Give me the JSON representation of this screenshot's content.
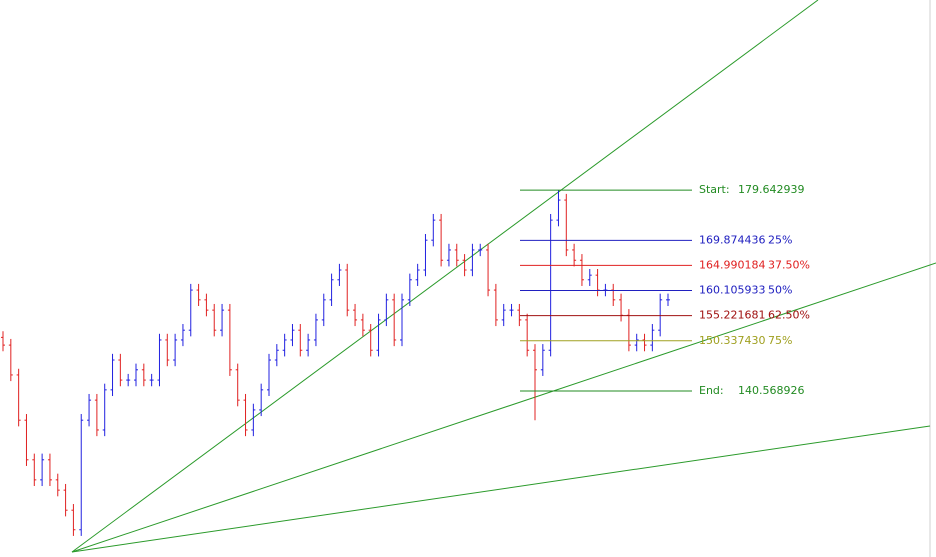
{
  "chart_data": {
    "type": "ohlc",
    "ylim": [
      108.3,
      216.6
    ],
    "up_color": "#2020e0",
    "down_color": "#e02020",
    "open": [
      151.0,
      149.5,
      143.7,
      134.9,
      127.2,
      123.3,
      127.2,
      123.3,
      121.3,
      117.4,
      113.6,
      134.9,
      138.8,
      133.0,
      140.8,
      146.6,
      142.7,
      142.7,
      144.7,
      142.7,
      142.7,
      150.5,
      146.6,
      150.5,
      152.4,
      160.2,
      158.3,
      156.3,
      152.4,
      156.3,
      144.7,
      138.8,
      133.0,
      136.9,
      140.8,
      146.6,
      148.5,
      150.5,
      152.4,
      148.5,
      150.5,
      154.4,
      158.3,
      162.2,
      164.1,
      156.3,
      154.4,
      152.4,
      148.5,
      154.4,
      158.3,
      150.5,
      158.3,
      162.2,
      164.1,
      169.9,
      173.8,
      166.0,
      168.0,
      166.0,
      164.1,
      168.0,
      168.0,
      160.2,
      154.4,
      156.3,
      156.3,
      154.4,
      148.5,
      144.7,
      148.5,
      173.8,
      177.7,
      168.0,
      166.0,
      162.2,
      163.1,
      160.2,
      160.2,
      158.3,
      155.3,
      149.5,
      150.5,
      149.5,
      152.4,
      158.3
    ],
    "high": [
      152.2,
      150.7,
      144.9,
      136.1,
      128.4,
      128.4,
      128.4,
      124.5,
      122.5,
      118.6,
      136.1,
      140.0,
      140.0,
      142.0,
      147.8,
      147.8,
      143.9,
      145.9,
      145.9,
      143.9,
      151.7,
      151.7,
      151.7,
      153.6,
      161.4,
      161.4,
      159.5,
      157.5,
      157.5,
      157.5,
      145.9,
      140.0,
      138.1,
      142.0,
      147.8,
      149.7,
      151.7,
      153.6,
      153.6,
      151.7,
      155.6,
      159.5,
      163.4,
      165.3,
      165.3,
      157.5,
      155.6,
      153.6,
      155.6,
      159.5,
      159.5,
      159.5,
      163.4,
      165.3,
      171.1,
      175.0,
      175.0,
      169.2,
      169.2,
      167.2,
      169.2,
      169.2,
      169.2,
      161.4,
      157.5,
      157.5,
      157.5,
      155.6,
      149.7,
      149.7,
      175.0,
      179.6,
      178.9,
      169.2,
      167.2,
      164.3,
      164.3,
      161.4,
      161.4,
      159.5,
      156.5,
      151.7,
      151.7,
      153.6,
      159.5,
      159.5
    ],
    "low": [
      148.3,
      142.5,
      133.7,
      126.0,
      122.1,
      122.1,
      122.1,
      120.1,
      116.2,
      112.4,
      112.4,
      133.7,
      131.8,
      131.8,
      139.6,
      141.5,
      141.5,
      141.5,
      141.5,
      141.5,
      141.5,
      145.4,
      145.4,
      149.3,
      151.2,
      157.1,
      155.1,
      151.2,
      151.2,
      143.5,
      137.6,
      131.8,
      131.8,
      135.7,
      139.6,
      145.4,
      147.3,
      149.3,
      147.3,
      147.3,
      149.3,
      153.2,
      157.1,
      161.0,
      155.1,
      153.2,
      151.2,
      147.3,
      147.3,
      153.2,
      149.3,
      149.3,
      157.1,
      161.0,
      162.9,
      168.7,
      164.8,
      164.8,
      164.8,
      162.9,
      162.9,
      166.8,
      159.0,
      153.2,
      153.2,
      155.1,
      153.2,
      147.3,
      134.9,
      143.5,
      147.3,
      172.6,
      166.8,
      164.8,
      161.0,
      161.0,
      159.0,
      159.0,
      157.1,
      154.1,
      148.3,
      148.3,
      148.3,
      148.3,
      151.2,
      157.1
    ],
    "close": [
      149.5,
      143.7,
      134.9,
      127.2,
      123.3,
      127.2,
      123.3,
      121.3,
      117.4,
      113.6,
      134.9,
      138.8,
      133.0,
      140.8,
      146.6,
      142.7,
      142.7,
      144.7,
      142.7,
      142.7,
      150.5,
      146.6,
      150.5,
      152.4,
      160.2,
      158.3,
      156.3,
      152.4,
      156.3,
      144.7,
      138.8,
      133.0,
      136.9,
      140.8,
      146.6,
      148.5,
      150.5,
      152.4,
      148.5,
      150.5,
      154.4,
      158.3,
      162.2,
      164.1,
      156.3,
      154.4,
      152.4,
      148.5,
      154.4,
      158.3,
      150.5,
      158.3,
      162.2,
      164.1,
      169.9,
      173.8,
      166.0,
      168.0,
      166.0,
      164.1,
      168.0,
      168.0,
      160.2,
      154.4,
      156.3,
      156.3,
      154.4,
      148.5,
      144.7,
      148.5,
      173.8,
      177.7,
      168.0,
      166.0,
      162.2,
      163.1,
      160.2,
      160.2,
      158.3,
      155.3,
      149.5,
      150.5,
      149.5,
      152.4,
      158.3,
      158.3
    ],
    "levels": [
      {
        "name": "Start:",
        "value": 179.642939,
        "color": "#228b22"
      },
      {
        "value": 169.874436,
        "percent": {
          "value": 25,
          "label": "25%"
        },
        "color": "#2020c0"
      },
      {
        "value": 164.990184,
        "percent": {
          "value": 37.5,
          "label": "37.50%"
        },
        "color": "#e02020"
      },
      {
        "value": 160.105933,
        "percent": {
          "value": 50,
          "label": "50%"
        },
        "color": "#2020c0"
      },
      {
        "value": 155.221681,
        "percent": {
          "value": 62.5,
          "label": "62.50%"
        },
        "color": "#a01010"
      },
      {
        "value": {
          "value": 150.33743,
          "label": "150.337430"
        },
        "percent": {
          "value": 75,
          "label": "75%"
        },
        "color": "#a0a020"
      },
      {
        "name": "End:",
        "value": 140.568926,
        "color": "#228b22"
      }
    ]
  }
}
